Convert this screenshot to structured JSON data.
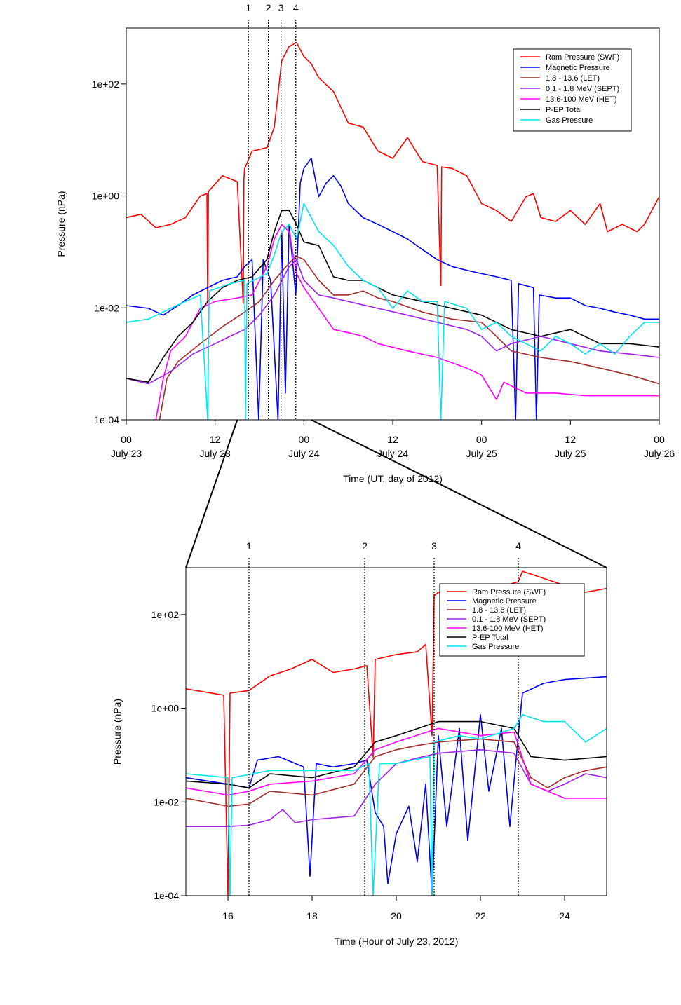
{
  "chart_data": [
    {
      "type": "line",
      "log_y": true,
      "legend": "top-right",
      "xlabel": "Time (UT, day of 2012)",
      "ylabel": "Pressure (nPa)",
      "xlim": [
        0,
        72
      ],
      "xticks": [
        {
          "value": 0,
          "label": [
            "00",
            "July 23"
          ]
        },
        {
          "value": 12,
          "label": [
            "12",
            "July 23"
          ]
        },
        {
          "value": 24,
          "label": [
            "00",
            "July 24"
          ]
        },
        {
          "value": 36,
          "label": [
            "12",
            "July 24"
          ]
        },
        {
          "value": 48,
          "label": [
            "00",
            "July 25"
          ]
        },
        {
          "value": 60,
          "label": [
            "12",
            "July 25"
          ]
        },
        {
          "value": 72,
          "label": [
            "00",
            "July 26"
          ]
        }
      ],
      "ylim": [
        0.0001,
        1000
      ],
      "yticks": [
        {
          "value": 0.0001,
          "label": "1e-04"
        },
        {
          "value": 0.01,
          "label": "1e-02"
        },
        {
          "value": 1,
          "label": "1e+00"
        },
        {
          "value": 100,
          "label": "1e+02"
        }
      ],
      "markers": [
        {
          "x": 16.5,
          "label": "1"
        },
        {
          "x": 19.2,
          "label": "2"
        },
        {
          "x": 20.9,
          "label": "3"
        },
        {
          "x": 22.9,
          "label": "4"
        }
      ],
      "series": [
        {
          "name": "Ram Pressure (SWF)",
          "color": "#ff0000",
          "x": [
            0,
            2,
            4,
            6,
            8,
            10,
            10.9,
            11,
            11.1,
            13,
            15,
            15.8,
            15.9,
            16,
            17,
            19,
            20,
            21,
            22,
            23,
            24,
            25,
            26,
            28,
            30,
            32,
            34,
            36,
            38,
            40,
            42,
            42.5,
            42.6,
            44,
            46,
            48,
            50,
            52,
            54,
            55,
            56,
            58,
            60,
            62,
            64,
            65,
            67,
            69,
            70,
            71,
            72
          ],
          "values": [
            0.41,
            0.47,
            0.27,
            0.31,
            0.41,
            1.0,
            1.1,
            0.012,
            1.2,
            2.3,
            1.8,
            0.012,
            2.0,
            3.1,
            6.3,
            7.3,
            17,
            260,
            470,
            550,
            310,
            230,
            130,
            73,
            20,
            17,
            6.3,
            4.7,
            11,
            4.1,
            3.5,
            0.025,
            3.3,
            3.1,
            2.3,
            0.73,
            0.55,
            0.35,
            0.97,
            1.1,
            0.41,
            0.35,
            0.55,
            0.31,
            0.73,
            0.23,
            0.31,
            0.23,
            0.31,
            0.55,
            0.97
          ]
        },
        {
          "name": "Magnetic Pressure",
          "color": "#0000ee",
          "x": [
            0,
            3,
            5,
            7,
            9,
            11,
            13,
            15,
            16,
            17,
            17.9,
            18.5,
            19.5,
            20.5,
            21,
            21.5,
            22,
            22.9,
            23.5,
            24,
            25,
            26,
            27,
            28,
            29,
            30,
            32,
            34,
            36,
            38,
            40,
            42,
            44,
            46,
            48,
            50,
            52,
            52.6,
            53,
            55,
            55.4,
            55.8,
            58,
            60,
            62,
            64,
            66,
            68,
            70,
            72
          ],
          "values": [
            0.011,
            0.0098,
            0.0074,
            0.011,
            0.017,
            0.023,
            0.031,
            0.036,
            0.055,
            0.073,
            0.0001,
            0.073,
            0.031,
            0.0001,
            0.23,
            0.0003,
            0.31,
            0.017,
            1.7,
            3.1,
            4.7,
            0.97,
            1.7,
            2.3,
            1.5,
            0.73,
            0.41,
            0.31,
            0.23,
            0.17,
            0.11,
            0.073,
            0.055,
            0.047,
            0.041,
            0.036,
            0.031,
            0.0001,
            0.027,
            0.023,
            0.0001,
            0.017,
            0.015,
            0.015,
            0.011,
            0.0098,
            0.0084,
            0.0074,
            0.0063,
            0.0063
          ]
        },
        {
          "name": "1.8 - 13.6 (LET)",
          "color": "#a52a2a",
          "x": [
            4.5,
            5.5,
            7,
            10,
            13,
            16,
            18,
            20,
            22,
            23,
            24,
            26,
            28,
            30,
            32,
            34,
            36,
            40,
            44,
            48,
            50,
            52,
            56,
            60,
            64,
            68,
            72
          ],
          "values": [
            0.0001,
            0.00055,
            0.0011,
            0.0023,
            0.0046,
            0.0084,
            0.013,
            0.031,
            0.063,
            0.084,
            0.073,
            0.031,
            0.017,
            0.017,
            0.02,
            0.015,
            0.013,
            0.0084,
            0.0063,
            0.0055,
            0.0031,
            0.0017,
            0.0013,
            0.0011,
            0.00084,
            0.00063,
            0.00044
          ]
        },
        {
          "name": "0.1 - 1.8 MeV (SEPT)",
          "color": "#a020f0",
          "x": [
            0,
            3,
            6,
            9,
            12,
            14,
            16,
            18,
            20,
            22,
            23,
            24,
            26,
            28,
            30,
            34,
            38,
            42,
            46,
            48,
            50,
            52,
            56,
            60,
            64,
            68,
            72
          ],
          "values": [
            0.00055,
            0.00044,
            0.00073,
            0.0015,
            0.0023,
            0.0031,
            0.0041,
            0.0074,
            0.017,
            0.055,
            0.073,
            0.031,
            0.017,
            0.015,
            0.013,
            0.0098,
            0.0074,
            0.0055,
            0.0041,
            0.0031,
            0.0017,
            0.0023,
            0.0031,
            0.0023,
            0.0017,
            0.0015,
            0.0013
          ]
        },
        {
          "name": "13.6-100 MeV (HET)",
          "color": "#ff00ff",
          "x": [
            4,
            5,
            6,
            8,
            10,
            12,
            15,
            17,
            19,
            20,
            21,
            22,
            23,
            24,
            26,
            28,
            30,
            32,
            34,
            38,
            42,
            46,
            48,
            50,
            51,
            54,
            58,
            62,
            66,
            70,
            72
          ],
          "values": [
            0.0001,
            0.00055,
            0.0017,
            0.0031,
            0.0098,
            0.013,
            0.015,
            0.017,
            0.055,
            0.17,
            0.31,
            0.23,
            0.041,
            0.023,
            0.0098,
            0.0041,
            0.0036,
            0.0031,
            0.0023,
            0.0017,
            0.0013,
            0.00084,
            0.00063,
            0.00023,
            0.00047,
            0.0003,
            0.0003,
            0.00027,
            0.00027,
            0.00027,
            0.00027
          ]
        },
        {
          "name": "P-EP Total",
          "color": "#000000",
          "x": [
            0,
            3,
            5,
            7,
            9,
            11,
            13,
            15,
            17,
            19,
            20,
            21,
            22,
            23,
            24,
            26,
            28,
            30,
            32,
            34,
            36,
            40,
            44,
            48,
            52,
            56,
            60,
            64,
            68,
            72
          ],
          "values": [
            0.00055,
            0.00047,
            0.0013,
            0.0031,
            0.0055,
            0.013,
            0.023,
            0.031,
            0.036,
            0.073,
            0.23,
            0.55,
            0.55,
            0.31,
            0.15,
            0.13,
            0.036,
            0.031,
            0.031,
            0.023,
            0.017,
            0.013,
            0.0098,
            0.0074,
            0.0041,
            0.0031,
            0.0041,
            0.0023,
            0.0023,
            0.002
          ]
        },
        {
          "name": "Gas Pressure",
          "color": "#00e5ee",
          "x": [
            0,
            3,
            6,
            8,
            10,
            11,
            11.2,
            14,
            16,
            16.1,
            16.3,
            19,
            20,
            21,
            22,
            23,
            24,
            26,
            28,
            30,
            32,
            34,
            36,
            38,
            40,
            42,
            42.5,
            43,
            46,
            48,
            50,
            52,
            54,
            56,
            58,
            60,
            62,
            64,
            66,
            68,
            70,
            72
          ],
          "values": [
            0.0055,
            0.0063,
            0.0098,
            0.013,
            0.017,
            0.0001,
            0.02,
            0.027,
            0.031,
            0.0001,
            0.027,
            0.041,
            0.089,
            0.23,
            0.31,
            0.17,
            0.73,
            0.23,
            0.13,
            0.055,
            0.031,
            0.023,
            0.0098,
            0.02,
            0.013,
            0.013,
            0.0001,
            0.013,
            0.0098,
            0.0041,
            0.0055,
            0.0031,
            0.0023,
            0.0017,
            0.0031,
            0.0023,
            0.0015,
            0.0023,
            0.0015,
            0.0031,
            0.0055,
            0.0055
          ]
        }
      ]
    },
    {
      "type": "line",
      "log_y": true,
      "legend": "top-right",
      "xlabel": "Time (Hour of July 23, 2012)",
      "ylabel": "Pressure (nPa)",
      "xlim": [
        15,
        25
      ],
      "xticks": [
        16,
        18,
        20,
        22,
        24
      ],
      "ylim": [
        0.0001,
        1000
      ],
      "yticks": [
        {
          "value": 0.0001,
          "label": "1e-04"
        },
        {
          "value": 0.01,
          "label": "1e-02"
        },
        {
          "value": 1,
          "label": "1e+00"
        },
        {
          "value": 100,
          "label": "1e+02"
        }
      ],
      "markers": [
        {
          "x": 16.5,
          "label": "1"
        },
        {
          "x": 19.25,
          "label": "2"
        },
        {
          "x": 20.9,
          "label": "3"
        },
        {
          "x": 22.9,
          "label": "4"
        }
      ],
      "series": [
        {
          "name": "Ram Pressure (SWF)",
          "color": "#ff0000",
          "x": [
            15,
            15.9,
            16,
            16.05,
            16.5,
            17,
            17.5,
            18,
            18.5,
            19,
            19.3,
            19.45,
            19.5,
            20,
            20.5,
            20.7,
            20.85,
            20.9,
            21,
            22,
            22.9,
            23,
            24,
            24.5,
            25
          ],
          "values": [
            2.6,
            1.9,
            0.0001,
            2.1,
            2.4,
            4.9,
            6.9,
            11,
            5.8,
            6.9,
            8.1,
            0.09,
            11,
            14,
            16,
            23,
            0.26,
            250,
            300,
            300,
            500,
            840,
            420,
            300,
            360
          ]
        },
        {
          "name": "Magnetic Pressure",
          "color": "#0000ee",
          "x": [
            15,
            16,
            16.5,
            16.7,
            17.2,
            17.8,
            17.95,
            18.1,
            18.5,
            19,
            19.3,
            19.5,
            19.7,
            19.8,
            20,
            20.3,
            20.5,
            20.7,
            20.85,
            21,
            21.2,
            21.5,
            21.7,
            22,
            22.2,
            22.5,
            22.7,
            22.9,
            23,
            23.5,
            24,
            24.5,
            25
          ],
          "values": [
            0.033,
            0.024,
            0.02,
            0.078,
            0.093,
            0.056,
            0.00026,
            0.066,
            0.056,
            0.066,
            0.078,
            0.0059,
            0.003,
            0.00018,
            0.0021,
            0.0081,
            0.00053,
            0.024,
            0.0001,
            0.26,
            0.003,
            0.37,
            0.0015,
            0.73,
            0.017,
            0.37,
            0.003,
            0.26,
            2.1,
            3.4,
            4.1,
            4.4,
            4.7
          ]
        },
        {
          "name": "1.8 - 13.6 (LET)",
          "color": "#a52a2a",
          "x": [
            15,
            16,
            16.5,
            17,
            18,
            19,
            19.5,
            20,
            20.5,
            21,
            22,
            22.8,
            23.2,
            23.6,
            24,
            24.5,
            25
          ],
          "values": [
            0.012,
            0.0081,
            0.009,
            0.017,
            0.014,
            0.024,
            0.093,
            0.13,
            0.16,
            0.19,
            0.22,
            0.19,
            0.033,
            0.02,
            0.033,
            0.047,
            0.056
          ]
        },
        {
          "name": "0.1 - 1.8 MeV (SEPT)",
          "color": "#a020f0",
          "x": [
            15,
            16,
            16.5,
            17,
            17.3,
            17.6,
            18,
            19,
            19.5,
            20,
            20.5,
            21,
            22,
            22.8,
            23.2,
            23.6,
            24,
            24.5,
            25
          ],
          "values": [
            0.003,
            0.003,
            0.0032,
            0.0042,
            0.0069,
            0.0036,
            0.0042,
            0.005,
            0.024,
            0.066,
            0.087,
            0.11,
            0.13,
            0.11,
            0.024,
            0.017,
            0.024,
            0.04,
            0.033
          ]
        },
        {
          "name": "13.6-100 MeV (HET)",
          "color": "#ff00ff",
          "x": [
            15,
            16,
            16.5,
            17,
            18,
            19,
            19.5,
            20,
            21,
            22,
            22.8,
            23.2,
            24,
            25
          ],
          "values": [
            0.02,
            0.014,
            0.017,
            0.024,
            0.028,
            0.04,
            0.13,
            0.19,
            0.37,
            0.26,
            0.31,
            0.024,
            0.012,
            0.012
          ]
        },
        {
          "name": "P-EP Total",
          "color": "#000000",
          "x": [
            15,
            16,
            16.5,
            17,
            18,
            19,
            19.5,
            20,
            21,
            22,
            22.8,
            23.2,
            24,
            25
          ],
          "values": [
            0.028,
            0.024,
            0.02,
            0.04,
            0.033,
            0.056,
            0.19,
            0.26,
            0.52,
            0.52,
            0.37,
            0.093,
            0.078,
            0.093
          ]
        },
        {
          "name": "Gas Pressure",
          "color": "#00e5ee",
          "x": [
            15,
            16,
            16.05,
            16.1,
            17,
            18,
            19,
            19.35,
            19.45,
            19.6,
            20,
            20.8,
            20.85,
            20.9,
            21.5,
            22,
            22.8,
            23,
            23.5,
            24,
            24.5,
            25
          ],
          "values": [
            0.04,
            0.033,
            0.0001,
            0.033,
            0.047,
            0.047,
            0.047,
            0.066,
            0.0001,
            0.066,
            0.066,
            0.093,
            0.0001,
            0.19,
            0.26,
            0.22,
            0.37,
            0.73,
            0.52,
            0.52,
            0.19,
            0.37
          ]
        }
      ]
    }
  ]
}
